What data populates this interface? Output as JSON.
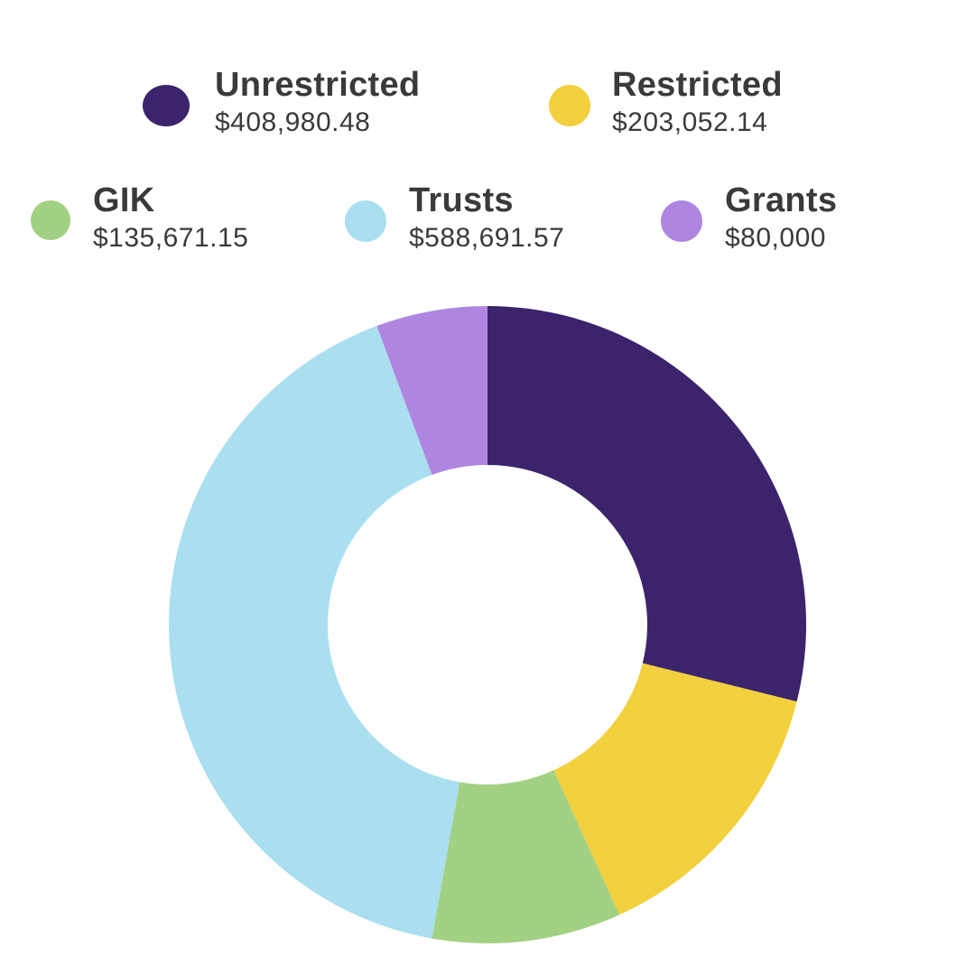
{
  "chart_data": {
    "type": "donut",
    "title": "",
    "series": [
      {
        "name": "Unrestricted",
        "value_label": "$408,980.48",
        "value": 408980.48,
        "color": "#3b246b"
      },
      {
        "name": "Restricted",
        "value_label": "$203,052.14",
        "value": 203052.14,
        "color": "#f2d03e"
      },
      {
        "name": "GIK",
        "value_label": "$135,671.15",
        "value": 135671.15,
        "color": "#a3d184"
      },
      {
        "name": "Trusts",
        "value_label": "$588,691.57",
        "value": 588691.57,
        "color": "#aadff0"
      },
      {
        "name": "Grants",
        "value_label": "$80,000",
        "value": 80000,
        "color": "#ae86e0"
      }
    ],
    "legend_position": "top"
  }
}
